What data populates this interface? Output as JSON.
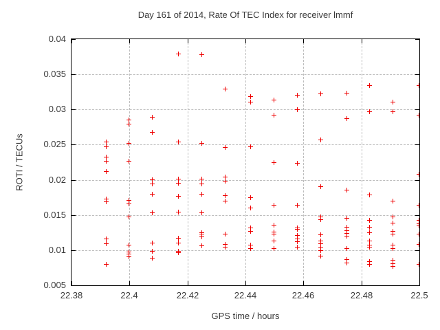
{
  "title": "Day 161 of 2014, Rate Of TEC Index for receiver lmmf",
  "colors": {
    "background": "#ffffff",
    "text": "#3a3a3a",
    "axis": "#000000",
    "grid": "#bdbdbd",
    "marker": "#ee0000"
  },
  "chart_data": {
    "type": "scatter",
    "title": "Day 161 of 2014, Rate Of TEC Index for receiver lmmf",
    "xlabel": "GPS time / hours",
    "ylabel": "ROTI / TECUs",
    "xlim": [
      22.38,
      22.5
    ],
    "ylim": [
      0.005,
      0.04
    ],
    "x_ticks": [
      22.38,
      22.4,
      22.42,
      22.44,
      22.46,
      22.48,
      22.5
    ],
    "x_tick_labels": [
      "22.38",
      "22.4",
      "22.42",
      "22.44",
      "22.46",
      "22.48",
      "22.5"
    ],
    "y_ticks": [
      0.005,
      0.01,
      0.015,
      0.02,
      0.025,
      0.03,
      0.035,
      0.04
    ],
    "y_tick_labels": [
      "0.005",
      "0.01",
      "0.015",
      "0.02",
      "0.025",
      "0.03",
      "0.035",
      "0.04"
    ],
    "grid": true,
    "legend": "none",
    "marker": "plus",
    "series": [
      {
        "name": "ROTI",
        "color": "#ee0000",
        "points": [
          [
            22.392,
            0.0253
          ],
          [
            22.392,
            0.0247
          ],
          [
            22.392,
            0.0232
          ],
          [
            22.392,
            0.0226
          ],
          [
            22.392,
            0.0211
          ],
          [
            22.392,
            0.0172
          ],
          [
            22.392,
            0.0168
          ],
          [
            22.392,
            0.0116
          ],
          [
            22.392,
            0.0109
          ],
          [
            22.392,
            0.0079
          ],
          [
            22.4,
            0.0285
          ],
          [
            22.4,
            0.0279
          ],
          [
            22.4,
            0.0251
          ],
          [
            22.4,
            0.0226
          ],
          [
            22.4,
            0.017
          ],
          [
            22.4,
            0.0165
          ],
          [
            22.4,
            0.0147
          ],
          [
            22.4,
            0.0107
          ],
          [
            22.4,
            0.0097
          ],
          [
            22.4,
            0.0094
          ],
          [
            22.4,
            0.009
          ],
          [
            22.408,
            0.0289
          ],
          [
            22.408,
            0.0267
          ],
          [
            22.408,
            0.02
          ],
          [
            22.408,
            0.0194
          ],
          [
            22.408,
            0.0179
          ],
          [
            22.408,
            0.0153
          ],
          [
            22.408,
            0.011
          ],
          [
            22.408,
            0.0098
          ],
          [
            22.408,
            0.0088
          ],
          [
            22.417,
            0.0379
          ],
          [
            22.417,
            0.0253
          ],
          [
            22.417,
            0.0201
          ],
          [
            22.417,
            0.0195
          ],
          [
            22.417,
            0.0176
          ],
          [
            22.417,
            0.0154
          ],
          [
            22.417,
            0.0117
          ],
          [
            22.417,
            0.011
          ],
          [
            22.417,
            0.0098
          ],
          [
            22.417,
            0.0096
          ],
          [
            22.425,
            0.0378
          ],
          [
            22.425,
            0.0251
          ],
          [
            22.425,
            0.0201
          ],
          [
            22.425,
            0.0194
          ],
          [
            22.425,
            0.0179
          ],
          [
            22.425,
            0.0153
          ],
          [
            22.425,
            0.0124
          ],
          [
            22.425,
            0.0122
          ],
          [
            22.425,
            0.0118
          ],
          [
            22.425,
            0.0106
          ],
          [
            22.433,
            0.0329
          ],
          [
            22.433,
            0.0246
          ],
          [
            22.433,
            0.0204
          ],
          [
            22.433,
            0.0198
          ],
          [
            22.433,
            0.0177
          ],
          [
            22.433,
            0.0169
          ],
          [
            22.433,
            0.0122
          ],
          [
            22.433,
            0.0108
          ],
          [
            22.433,
            0.0104
          ],
          [
            22.442,
            0.0318
          ],
          [
            22.442,
            0.031
          ],
          [
            22.442,
            0.0247
          ],
          [
            22.442,
            0.0174
          ],
          [
            22.442,
            0.016
          ],
          [
            22.442,
            0.0131
          ],
          [
            22.442,
            0.0126
          ],
          [
            22.442,
            0.0107
          ],
          [
            22.442,
            0.0102
          ],
          [
            22.45,
            0.0313
          ],
          [
            22.45,
            0.0292
          ],
          [
            22.45,
            0.0224
          ],
          [
            22.45,
            0.0163
          ],
          [
            22.45,
            0.0135
          ],
          [
            22.45,
            0.0125
          ],
          [
            22.45,
            0.0122
          ],
          [
            22.45,
            0.0113
          ],
          [
            22.45,
            0.0102
          ],
          [
            22.458,
            0.032
          ],
          [
            22.458,
            0.0299
          ],
          [
            22.458,
            0.0223
          ],
          [
            22.458,
            0.0163
          ],
          [
            22.458,
            0.0131
          ],
          [
            22.458,
            0.0129
          ],
          [
            22.458,
            0.012
          ],
          [
            22.458,
            0.0116
          ],
          [
            22.458,
            0.0112
          ],
          [
            22.458,
            0.0104
          ],
          [
            22.466,
            0.0322
          ],
          [
            22.466,
            0.0256
          ],
          [
            22.466,
            0.019
          ],
          [
            22.466,
            0.0147
          ],
          [
            22.466,
            0.0143
          ],
          [
            22.466,
            0.0121
          ],
          [
            22.466,
            0.0113
          ],
          [
            22.466,
            0.0109
          ],
          [
            22.466,
            0.0103
          ],
          [
            22.466,
            0.0099
          ],
          [
            22.466,
            0.0091
          ],
          [
            22.475,
            0.0323
          ],
          [
            22.475,
            0.0287
          ],
          [
            22.475,
            0.0185
          ],
          [
            22.475,
            0.0145
          ],
          [
            22.475,
            0.0132
          ],
          [
            22.475,
            0.0127
          ],
          [
            22.475,
            0.0123
          ],
          [
            22.475,
            0.0119
          ],
          [
            22.475,
            0.0102
          ],
          [
            22.475,
            0.0086
          ],
          [
            22.475,
            0.0081
          ],
          [
            22.483,
            0.0334
          ],
          [
            22.483,
            0.0296
          ],
          [
            22.483,
            0.0178
          ],
          [
            22.483,
            0.0142
          ],
          [
            22.483,
            0.0132
          ],
          [
            22.483,
            0.0124
          ],
          [
            22.483,
            0.0113
          ],
          [
            22.483,
            0.0107
          ],
          [
            22.483,
            0.0104
          ],
          [
            22.483,
            0.0083
          ],
          [
            22.483,
            0.0079
          ],
          [
            22.491,
            0.031
          ],
          [
            22.491,
            0.0296
          ],
          [
            22.491,
            0.0169
          ],
          [
            22.491,
            0.0147
          ],
          [
            22.491,
            0.0138
          ],
          [
            22.491,
            0.0126
          ],
          [
            22.491,
            0.0122
          ],
          [
            22.491,
            0.0107
          ],
          [
            22.491,
            0.0102
          ],
          [
            22.491,
            0.0085
          ],
          [
            22.491,
            0.008
          ],
          [
            22.491,
            0.0076
          ],
          [
            22.5,
            0.0334
          ],
          [
            22.5,
            0.0292
          ],
          [
            22.5,
            0.0207
          ],
          [
            22.5,
            0.0163
          ],
          [
            22.5,
            0.0142
          ],
          [
            22.5,
            0.0137
          ],
          [
            22.5,
            0.0134
          ],
          [
            22.5,
            0.0122
          ],
          [
            22.5,
            0.0108
          ],
          [
            22.5,
            0.0079
          ]
        ]
      }
    ]
  }
}
